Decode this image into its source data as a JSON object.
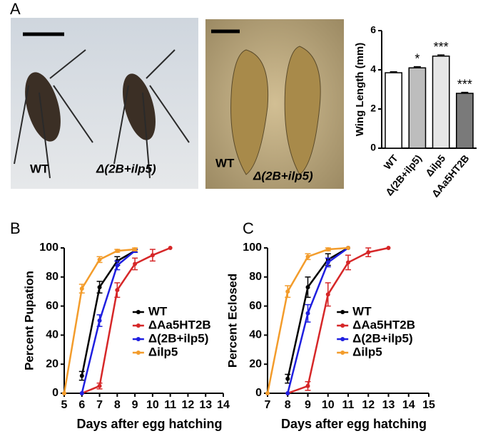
{
  "figure": {
    "panel_labels": [
      "A",
      "B",
      "C"
    ],
    "photo_labels": [
      "WT",
      "Δ(2B+ilp5)",
      "WT",
      "Δ(2B+ilp5)"
    ]
  },
  "chart_data": [
    {
      "type": "bar",
      "ylabel": "Wing Length (mm)",
      "categories": [
        "WT",
        "Δ(2B+ilp5)",
        "Δilp5",
        "ΔAa5HT2B"
      ],
      "values": [
        3.85,
        4.1,
        4.7,
        2.8
      ],
      "errors": [
        0.05,
        0.06,
        0.06,
        0.05
      ],
      "annotations": [
        null,
        "*",
        "***",
        "***"
      ],
      "colors": [
        "#ffffff",
        "#bdbdbd",
        "#e6e6e6",
        "#7a7a7a"
      ],
      "ylim": [
        0,
        6
      ],
      "yticks": [
        0,
        2,
        4,
        6
      ]
    },
    {
      "type": "line",
      "xlabel": "Days after egg hatching",
      "ylabel": "Percent Pupation",
      "xlim": [
        5,
        14
      ],
      "xticks": [
        5,
        6,
        7,
        8,
        9,
        10,
        11,
        12,
        13,
        14
      ],
      "ylim": [
        0,
        100
      ],
      "yticks": [
        0,
        20,
        40,
        60,
        80,
        100
      ],
      "legend": "right",
      "series": [
        {
          "name": "WT",
          "color": "#000000",
          "x": [
            6,
            7,
            8,
            9
          ],
          "values": [
            12,
            73,
            91,
            98
          ],
          "errors": [
            3,
            4,
            3,
            1
          ]
        },
        {
          "name": "ΔAa5HT2B",
          "color": "#d62728",
          "x": [
            6,
            7,
            8,
            9,
            10,
            11
          ],
          "values": [
            0,
            5,
            71,
            89,
            95,
            100
          ],
          "errors": [
            0,
            2,
            5,
            4,
            4,
            0
          ]
        },
        {
          "name": "Δ(2B+ilp5)",
          "color": "#1f1fe0",
          "x": [
            6,
            7,
            8,
            9
          ],
          "values": [
            0,
            50,
            88,
            98
          ],
          "errors": [
            0,
            4,
            3,
            1
          ]
        },
        {
          "name": "Δilp5",
          "color": "#f39c2b",
          "x": [
            5,
            6,
            7,
            8,
            9
          ],
          "values": [
            0,
            72,
            92,
            98,
            99
          ],
          "errors": [
            0,
            3,
            2,
            1,
            1
          ]
        }
      ]
    },
    {
      "type": "line",
      "xlabel": "Days after egg hatching",
      "ylabel": "Percent Eclosed",
      "xlim": [
        7,
        15
      ],
      "xticks": [
        7,
        8,
        9,
        10,
        11,
        12,
        13,
        14,
        15
      ],
      "ylim": [
        0,
        100
      ],
      "yticks": [
        0,
        20,
        40,
        60,
        80,
        100
      ],
      "legend": "right",
      "series": [
        {
          "name": "WT",
          "color": "#000000",
          "x": [
            8,
            9,
            10,
            11
          ],
          "values": [
            10,
            73,
            92,
            100
          ],
          "errors": [
            3,
            7,
            4,
            0
          ]
        },
        {
          "name": "ΔAa5HT2B",
          "color": "#d62728",
          "x": [
            8,
            9,
            10,
            11,
            12,
            13
          ],
          "values": [
            0,
            5,
            68,
            90,
            97,
            100
          ],
          "errors": [
            0,
            3,
            8,
            5,
            3,
            0
          ]
        },
        {
          "name": "Δ(2B+ilp5)",
          "color": "#1f1fe0",
          "x": [
            8,
            9,
            10,
            11
          ],
          "values": [
            0,
            55,
            90,
            100
          ],
          "errors": [
            0,
            6,
            3,
            0
          ]
        },
        {
          "name": "Δilp5",
          "color": "#f39c2b",
          "x": [
            7,
            8,
            9,
            10,
            11
          ],
          "values": [
            0,
            70,
            94,
            99,
            100
          ],
          "errors": [
            0,
            4,
            2,
            1,
            0
          ]
        }
      ]
    }
  ]
}
